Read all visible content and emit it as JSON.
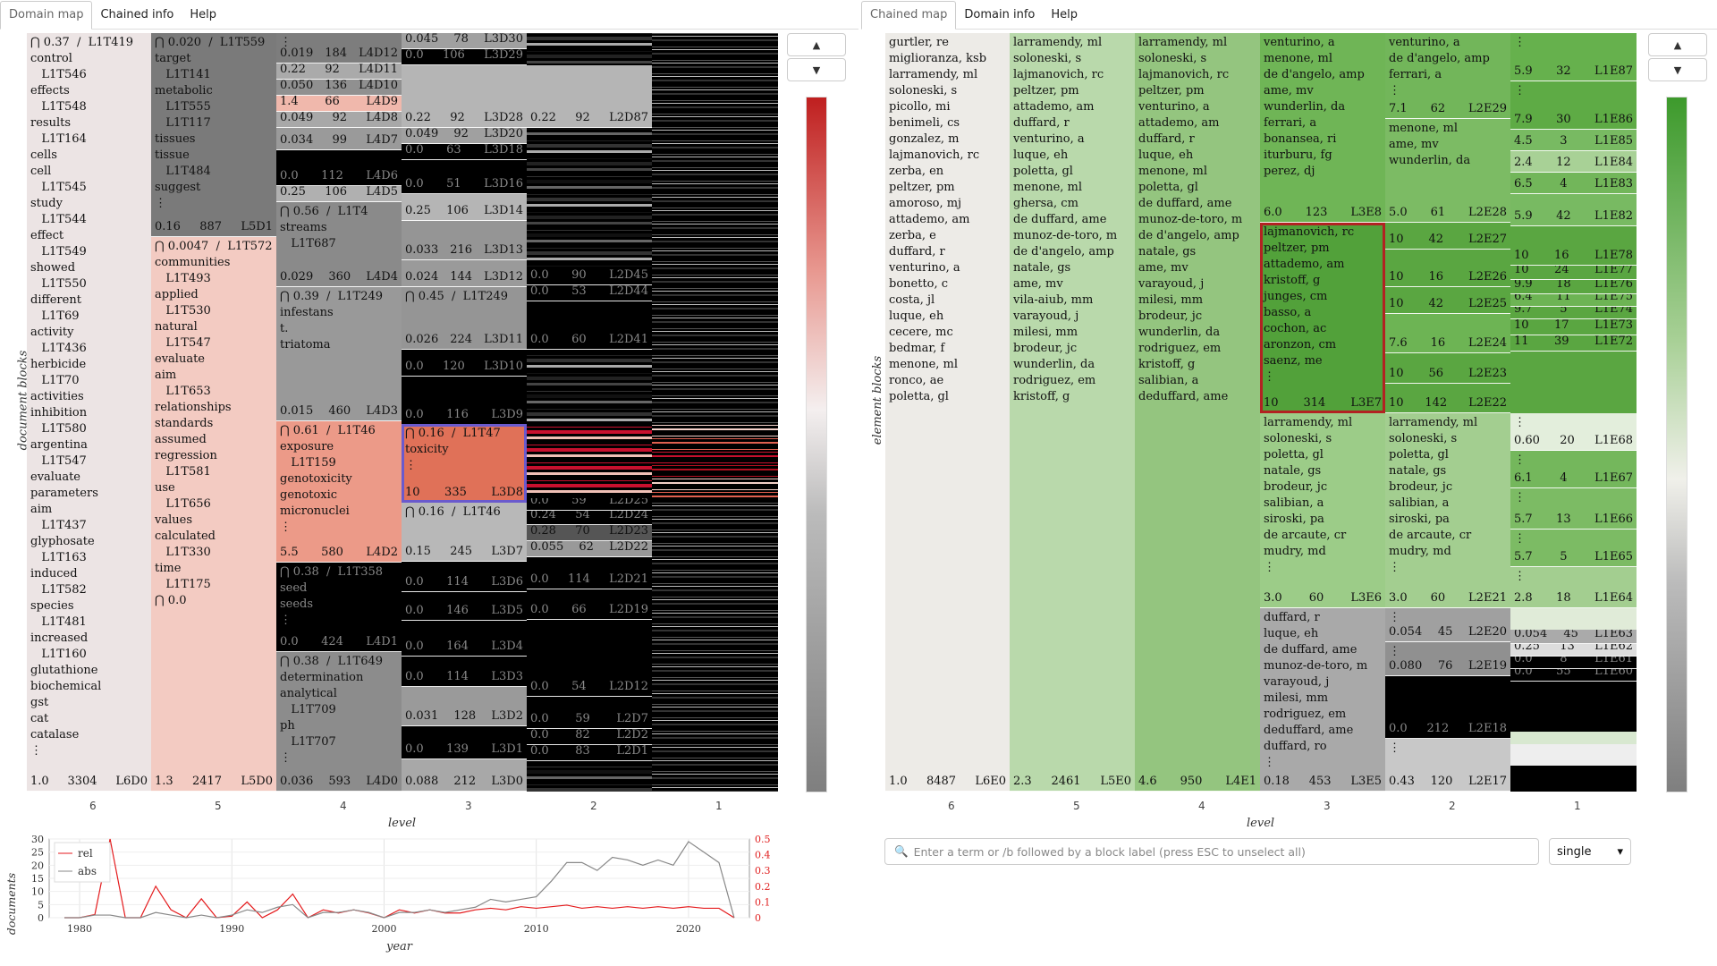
{
  "left_tabs": [
    "Domain map",
    "Chained info",
    "Help"
  ],
  "right_tabs": [
    "Chained map",
    "Domain info",
    "Help"
  ],
  "left_map": {
    "ylabel": "document blocks",
    "xlabel": "level",
    "levels": [
      "6",
      "5",
      "4",
      "3",
      "2",
      "1"
    ],
    "col6": {
      "lines": "⋂ 0.37  /  L1T419\ncontrol\n   L1T546\neffects\n   L1T548\nresults\n   L1T164\ncells\ncell\n   L1T545\nstudy\n   L1T544\neffect\n   L1T549\nshowed\n   L1T550\ndifferent\n   L1T69\nactivity\n   L1T436\nherbicide\n   L1T70\nactivities\ninhibition\n   L1T580\nargentina\n   L1T547\nevaluate\nparameters\naim\n   L1T437\nglyphosate\n   L1T163\ninduced\n   L1T582\nspecies\n   L1T481\nincreased\n   L1T160\nglutathione\nbiochemical\ngst\ncat\ncatalase\n⋮",
      "a": "1.0",
      "b": "3304",
      "c": "L6D0"
    },
    "col5": [
      {
        "lines": "⋂ 0.020  /  L1T559\ntarget\n   L1T141\nmetabolic\n   L1T555\n   L1T117\ntissues\ntissue\n   L1T484\nsuggest\n⋮",
        "a": "0.16",
        "b": "887",
        "c": "L5D1"
      },
      {
        "lines": "⋂ 0.0047  /  L1T572\ncommunities\n   L1T493\napplied\n   L1T530\nnatural\n   L1T547\nevaluate\naim\n   L1T653\nrelationships\nstandards\nassumed\nregression\n   L1T581\nuse\n   L1T656\nvalues\ncalculated\n   L1T330\ntime\n   L1T175\n⋂ 0.0",
        "a": "1.3",
        "b": "2417",
        "c": "L5D0"
      }
    ],
    "col4": [
      {
        "lines": "⋮",
        "a": "0.019",
        "b": "184",
        "c": "L4D12"
      },
      {
        "lines": "",
        "a": "0.22",
        "b": "92",
        "c": "L4D11"
      },
      {
        "lines": "",
        "a": "0.050",
        "b": "136",
        "c": "L4D10"
      },
      {
        "lines": "",
        "a": "1.4",
        "b": "66",
        "c": "L4D9"
      },
      {
        "lines": "",
        "a": "0.049",
        "b": "92",
        "c": "L4D8"
      },
      {
        "lines": "",
        "a": "0.034",
        "b": "99",
        "c": "L4D7"
      },
      {
        "lines": "",
        "a": "0.0",
        "b": "112",
        "c": "L4D6"
      },
      {
        "lines": "",
        "a": "0.25",
        "b": "106",
        "c": "L4D5"
      },
      {
        "lines": "⋂ 0.56  /  L1T4\nstreams\n   L1T687",
        "a": "0.029",
        "b": "360",
        "c": "L4D4"
      },
      {
        "lines": "⋂ 0.39  /  L1T249\ninfestans\nt.\ntriatoma",
        "a": "0.015",
        "b": "460",
        "c": "L4D3"
      },
      {
        "lines": "⋂ 0.61  /  L1T46\nexposure\n   L1T159\ngenotoxicity\ngenotoxic\nmicronuclei\n⋮",
        "a": "5.5",
        "b": "580",
        "c": "L4D2"
      },
      {
        "lines": "⋂ 0.38  /  L1T358\nseed\nseeds\n⋮",
        "a": "0.0",
        "b": "424",
        "c": "L4D1"
      },
      {
        "lines": "⋂ 0.38  /  L1T649\ndetermination\nanalytical\n   L1T709\nph\n   L1T707\n⋮",
        "a": "0.036",
        "b": "593",
        "c": "L4D0"
      }
    ],
    "col3": [
      {
        "a": "0.045",
        "b": "78",
        "c": "L3D30"
      },
      {
        "a": "0.0",
        "b": "106",
        "c": "L3D29"
      },
      {
        "a": "0.22",
        "b": "92",
        "c": "L3D28"
      },
      {
        "a": "0.049",
        "b": "92",
        "c": "L3D20"
      },
      {
        "a": "0.0",
        "b": "63",
        "c": "L3D18"
      },
      {
        "a": "0.0",
        "b": "51",
        "c": "L3D16"
      },
      {
        "a": "0.25",
        "b": "106",
        "c": "L3D14"
      },
      {
        "a": "0.033",
        "b": "216",
        "c": "L3D13"
      },
      {
        "a": "0.024",
        "b": "144",
        "c": "L3D12"
      },
      {
        "lines": "⋂ 0.45  /  L1T249",
        "a": "0.026",
        "b": "224",
        "c": "L3D11"
      },
      {
        "a": "0.0",
        "b": "120",
        "c": "L3D10"
      },
      {
        "a": "0.0",
        "b": "116",
        "c": "L3D9"
      },
      {
        "lines": "⋂ 0.16  /  L1T47\ntoxicity\n⋮",
        "a": "10",
        "b": "335",
        "c": "L3D8"
      },
      {
        "lines": "⋂ 0.16  /  L1T46",
        "a": "0.15",
        "b": "245",
        "c": "L3D7"
      },
      {
        "a": "0.0",
        "b": "114",
        "c": "L3D6"
      },
      {
        "a": "0.0",
        "b": "146",
        "c": "L3D5"
      },
      {
        "a": "0.0",
        "b": "164",
        "c": "L3D4"
      },
      {
        "a": "0.0",
        "b": "114",
        "c": "L3D3"
      },
      {
        "a": "0.031",
        "b": "128",
        "c": "L3D2"
      },
      {
        "a": "0.0",
        "b": "139",
        "c": "L3D1"
      },
      {
        "a": "0.088",
        "b": "212",
        "c": "L3D0"
      }
    ],
    "col2": [
      {
        "a": "0.22",
        "b": "92",
        "c": "L2D87"
      },
      {
        "a": "0.0",
        "b": "90",
        "c": "L2D45"
      },
      {
        "a": "0.0",
        "b": "53",
        "c": "L2D44"
      },
      {
        "a": "0.0",
        "b": "60",
        "c": "L2D41"
      },
      {
        "a": "0.0",
        "b": "59",
        "c": "L2D25"
      },
      {
        "a": "0.24",
        "b": "54",
        "c": "L2D24"
      },
      {
        "a": "0.28",
        "b": "70",
        "c": "L2D23"
      },
      {
        "a": "0.055",
        "b": "62",
        "c": "L2D22"
      },
      {
        "a": "0.0",
        "b": "114",
        "c": "L2D21"
      },
      {
        "a": "0.0",
        "b": "66",
        "c": "L2D19"
      },
      {
        "a": "0.0",
        "b": "54",
        "c": "L2D12"
      },
      {
        "a": "0.0",
        "b": "59",
        "c": "L2D7"
      },
      {
        "a": "0.0",
        "b": "82",
        "c": "L2D2"
      },
      {
        "a": "0.0",
        "b": "83",
        "c": "L2D1"
      }
    ]
  },
  "left_chart": {
    "ylabel": "documents",
    "xlabel": "year",
    "legend": [
      "rel",
      "abs"
    ],
    "yticks_left": [
      "30",
      "25",
      "20",
      "15",
      "10",
      "5",
      "0"
    ],
    "yticks_right": [
      "0.5",
      "0.4",
      "0.3",
      "0.2",
      "0.1",
      "0"
    ],
    "xticks": [
      "1980",
      "1990",
      "2000",
      "2010",
      "2020"
    ]
  },
  "chart_data": {
    "type": "line",
    "x": [
      1979,
      1980,
      1981,
      1982,
      1983,
      1984,
      1985,
      1986,
      1987,
      1988,
      1989,
      1990,
      1991,
      1992,
      1993,
      1994,
      1995,
      1996,
      1997,
      1998,
      1999,
      2000,
      2001,
      2002,
      2003,
      2004,
      2005,
      2006,
      2007,
      2008,
      2009,
      2010,
      2011,
      2012,
      2013,
      2014,
      2015,
      2016,
      2017,
      2018,
      2019,
      2020,
      2021,
      2022,
      2023
    ],
    "series": [
      {
        "name": "rel",
        "axis": "right",
        "values": [
          0,
          0,
          0.02,
          0.5,
          0,
          0,
          0.2,
          0.05,
          0,
          0.12,
          0,
          0.01,
          0.1,
          0,
          0.05,
          0.15,
          0,
          0.05,
          0.03,
          0.05,
          0.03,
          0,
          0.05,
          0.03,
          0.05,
          0.03,
          0.03,
          0.05,
          0.06,
          0.05,
          0.07,
          0.06,
          0.07,
          0.08,
          0.06,
          0.07,
          0.06,
          0.07,
          0.06,
          0.07,
          0.06,
          0.07,
          0.06,
          0.06,
          0
        ]
      },
      {
        "name": "abs",
        "axis": "left",
        "values": [
          0,
          0,
          1,
          1,
          0,
          0,
          2,
          1,
          0,
          1,
          0,
          1,
          3,
          2,
          4,
          5,
          0,
          2,
          2,
          3,
          2,
          0,
          2,
          2,
          3,
          2,
          3,
          4,
          7,
          6,
          7,
          8,
          14,
          21,
          21,
          18,
          23,
          22,
          20,
          22,
          20,
          29,
          25,
          21,
          0
        ]
      }
    ],
    "ylim": [
      0,
      30
    ],
    "ylim_right": [
      0,
      0.5
    ]
  },
  "right_map": {
    "ylabel": "element blocks",
    "xlabel": "level",
    "levels": [
      "6",
      "5",
      "4",
      "3",
      "2",
      "1"
    ],
    "col6": {
      "lines": "gurtler, re\nmiglioranza, ksb\nlarramendy, ml\nsoloneski, s\npicollo, mi\nbenimeli, cs\ngonzalez, m\nlajmanovich, rc\nzerba, en\npeltzer, pm\namoroso, mj\nattademo, am\nzerba, e\nduffard, r\nventurino, a\nbonetto, c\ncosta, jl\nluque, eh\ncecere, mc\nbedmar, f\nmenone, ml\nronco, ae\npoletta, gl",
      "a": "1.0",
      "b": "8487",
      "c": "L6E0"
    },
    "col5": {
      "lines": "larramendy, ml\nsoloneski, s\nlajmanovich, rc\npeltzer, pm\nattademo, am\nduffard, r\nventurino, a\nluque, eh\npoletta, gl\nmenone, ml\nghersa, cm\nde duffard, ame\nmunoz-de-toro, m\nde d'angelo, amp\nnatale, gs\name, mv\nvila-aiub, mm\nvarayoud, j\nmilesi, mm\nbrodeur, jc\nwunderlin, da\nrodriguez, em\nkristoff, g",
      "a": "2.3",
      "b": "2461",
      "c": "L5E0"
    },
    "col4": {
      "lines": "larramendy, ml\nsoloneski, s\nlajmanovich, rc\npeltzer, pm\nventurino, a\nattademo, am\nduffard, r\nluque, eh\nmenone, ml\npoletta, gl\nde duffard, ame\nmunoz-de-toro, m\nde d'angelo, amp\nnatale, gs\name, mv\nvarayoud, j\nmilesi, mm\nbrodeur, jc\nwunderlin, da\nrodriguez, em\nkristoff, g\nsalibian, a\ndeduffard, ame",
      "a": "4.6",
      "b": "950",
      "c": "L4E1"
    },
    "col3": [
      {
        "lines": "venturino, a\nmenone, ml\nde d'angelo, amp\name, mv\nwunderlin, da\nferrari, a\nbonansea, ri\niturburu, fg\nperez, dj",
        "a": "6.0",
        "b": "123",
        "c": "L3E8"
      },
      {
        "lines": "lajmanovich, rc\npeltzer, pm\nattademo, am\nkristoff, g\njunges, cm\nbasso, a\ncochon, ac\naronzon, cm\nsaenz, me\n⋮",
        "a": "10",
        "b": "314",
        "c": "L3E7"
      },
      {
        "lines": "larramendy, ml\nsoloneski, s\npoletta, gl\nnatale, gs\nbrodeur, jc\nsalibian, a\nsiroski, pa\nde arcaute, cr\nmudry, md\n⋮",
        "a": "3.0",
        "b": "60",
        "c": "L3E6"
      },
      {
        "lines": "duffard, r\nluque, eh\nde duffard, ame\nmunoz-de-toro, m\nvarayoud, j\nmilesi, mm\nrodriguez, em\ndeduffard, ame\nduffard, ro\n⋮",
        "a": "0.18",
        "b": "453",
        "c": "L3E5"
      }
    ],
    "col2": [
      {
        "lines": "venturino, a\nde d'angelo, amp\nferrari, a\n⋮",
        "a": "7.1",
        "b": "62",
        "c": "L2E29"
      },
      {
        "lines": "menone, ml\name, mv\nwunderlin, da",
        "a": "5.0",
        "b": "61",
        "c": "L2E28"
      },
      {
        "a": "10",
        "b": "42",
        "c": "L2E27"
      },
      {
        "a": "10",
        "b": "16",
        "c": "L2E26"
      },
      {
        "a": "10",
        "b": "42",
        "c": "L2E25"
      },
      {
        "a": "7.6",
        "b": "16",
        "c": "L2E24"
      },
      {
        "a": "10",
        "b": "56",
        "c": "L2E23"
      },
      {
        "a": "10",
        "b": "142",
        "c": "L2E22"
      },
      {
        "lines": "larramendy, ml\nsoloneski, s\npoletta, gl\nnatale, gs\nbrodeur, jc\nsalibian, a\nsiroski, pa\nde arcaute, cr\nmudry, md\n⋮",
        "a": "3.0",
        "b": "60",
        "c": "L2E21"
      },
      {
        "lines": "⋮",
        "a": "0.054",
        "b": "45",
        "c": "L2E20"
      },
      {
        "lines": "⋮",
        "a": "0.080",
        "b": "76",
        "c": "L2E19"
      },
      {
        "a": "0.0",
        "b": "212",
        "c": "L2E18"
      },
      {
        "lines": "⋮",
        "a": "0.43",
        "b": "120",
        "c": "L2E17"
      }
    ],
    "col1": [
      {
        "lines": "⋮",
        "a": "5.9",
        "b": "32",
        "c": "L1E87"
      },
      {
        "lines": "⋮",
        "a": "7.9",
        "b": "30",
        "c": "L1E86"
      },
      {
        "a": "4.5",
        "b": "3",
        "c": "L1E85"
      },
      {
        "a": "2.4",
        "b": "12",
        "c": "L1E84"
      },
      {
        "a": "6.5",
        "b": "4",
        "c": "L1E83"
      },
      {
        "a": "5.9",
        "b": "42",
        "c": "L1E82"
      },
      {
        "a": "10",
        "b": "16",
        "c": "L1E78"
      },
      {
        "a": "10",
        "b": "24",
        "c": "L1E77"
      },
      {
        "a": "9.9",
        "b": "18",
        "c": "L1E76"
      },
      {
        "a": "6.4",
        "b": "11",
        "c": "L1E75"
      },
      {
        "a": "9.7",
        "b": "5",
        "c": "L1E74"
      },
      {
        "a": "10",
        "b": "17",
        "c": "L1E73"
      },
      {
        "a": "11",
        "b": "39",
        "c": "L1E72"
      },
      {
        "lines": "⋮",
        "a": "0.60",
        "b": "20",
        "c": "L1E68"
      },
      {
        "lines": "⋮",
        "a": "6.1",
        "b": "4",
        "c": "L1E67"
      },
      {
        "lines": "⋮",
        "a": "5.7",
        "b": "13",
        "c": "L1E66"
      },
      {
        "lines": "⋮",
        "a": "5.7",
        "b": "5",
        "c": "L1E65"
      },
      {
        "lines": "⋮",
        "a": "2.8",
        "b": "18",
        "c": "L1E64"
      },
      {
        "a": "0.054",
        "b": "45",
        "c": "L1E63"
      },
      {
        "a": "0.25",
        "b": "13",
        "c": "L1E62"
      },
      {
        "a": "0.0",
        "b": "8",
        "c": "L1E61"
      },
      {
        "a": "0.0",
        "b": "55",
        "c": "L1E60"
      }
    ]
  },
  "search": {
    "placeholder": "Enter a term or /b followed by a block label (press ESC to unselect all)"
  },
  "mode_select": {
    "value": "single"
  },
  "buttons": {
    "up": "▲",
    "down": "▼"
  },
  "colors": {
    "red_accent": "#cc3333",
    "green_accent": "#3d9a2c",
    "select_blue": "#6a5acd",
    "select_red": "#b22222"
  }
}
